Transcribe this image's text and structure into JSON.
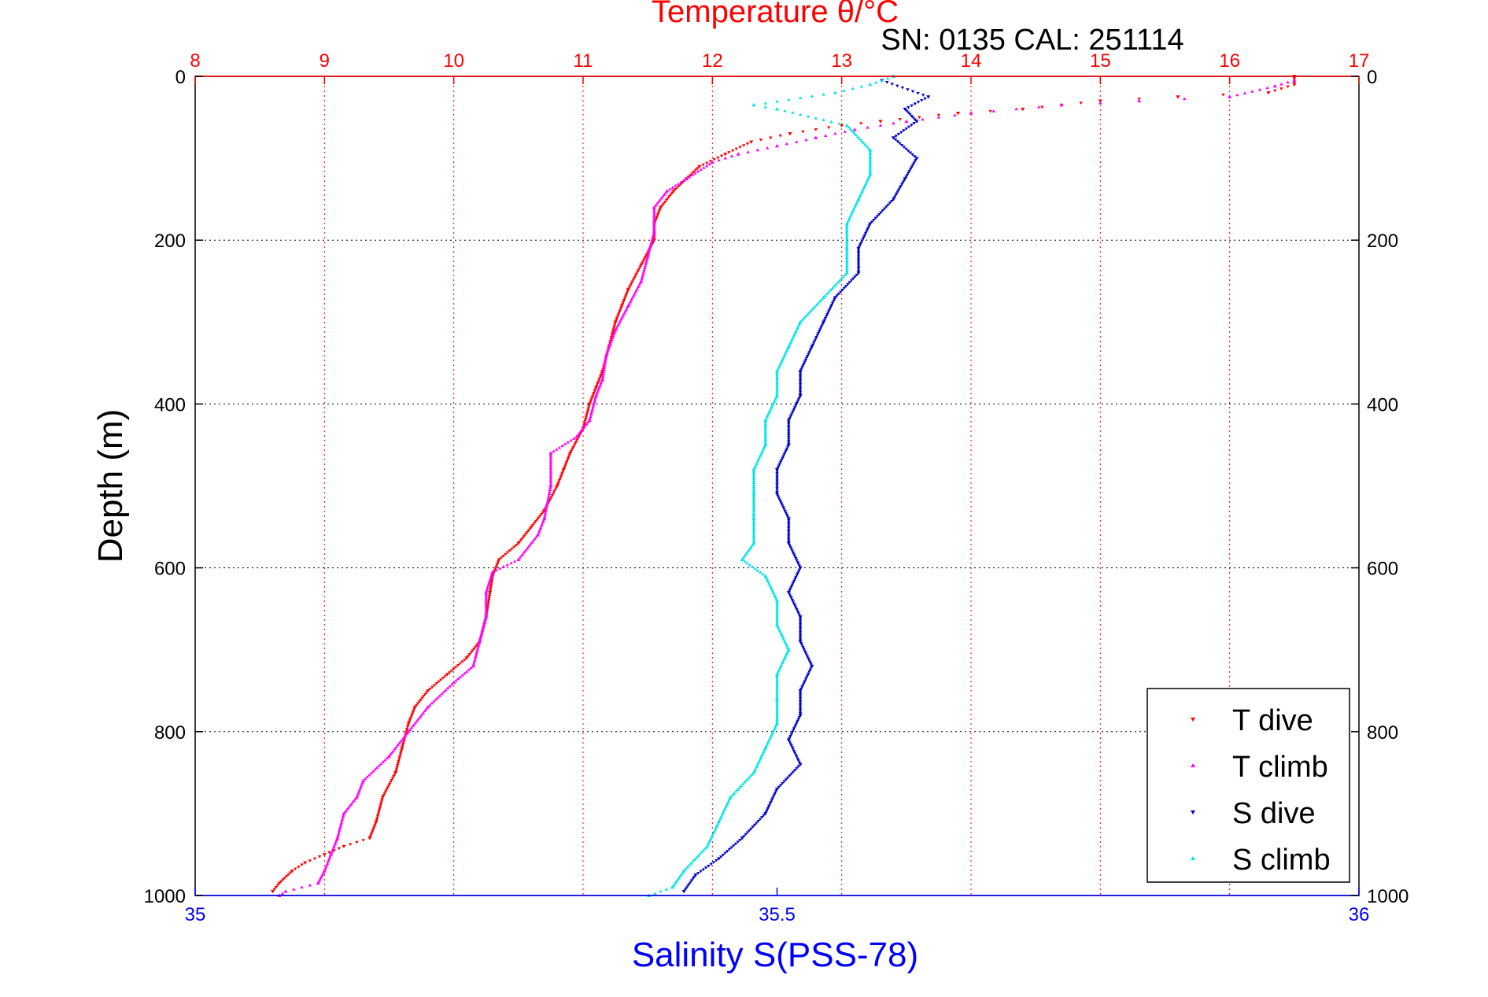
{
  "figure": {
    "title": "Temperature θ/°C",
    "serial_label": "SN: 0135  CAL: 251114",
    "ylabel": "Depth (m)",
    "xlabel_bottom": "Salinity S(PSS-78)"
  },
  "colors": {
    "temperature_axis": "#ff0000",
    "salinity_axis": "#0000ff",
    "t_dive": "#ff0000",
    "t_climb": "#ff00ff",
    "s_dive": "#0000cc",
    "s_climb": "#00e5e5",
    "grid_temperature": "#ff0000",
    "grid_depth": "#000000"
  },
  "chart_data": {
    "type": "scatter",
    "y_axis": {
      "label": "Depth (m)",
      "range": [
        0,
        1000
      ],
      "reversed": true,
      "ticks": [
        0,
        200,
        400,
        600,
        800,
        1000
      ],
      "tick_labels": [
        "0",
        "200",
        "400",
        "600",
        "800",
        "1000"
      ]
    },
    "x_axis_top": {
      "label": "Temperature θ/°C",
      "range": [
        8,
        17
      ],
      "ticks": [
        8,
        9,
        10,
        11,
        12,
        13,
        14,
        15,
        16,
        17
      ],
      "tick_labels": [
        "8",
        "9",
        "10",
        "11",
        "12",
        "13",
        "14",
        "15",
        "16",
        "17"
      ],
      "grid": true
    },
    "x_axis_bottom": {
      "label": "Salinity S(PSS-78)",
      "range": [
        35,
        36
      ],
      "ticks": [
        35,
        35.5,
        36
      ],
      "tick_labels": [
        "35",
        "35.5",
        "36"
      ]
    },
    "legend": {
      "placement": "bottom-right"
    },
    "series": [
      {
        "name": "T dive",
        "axis": "temperature",
        "marker": "triangle-down",
        "points": [
          [
            16.5,
            0
          ],
          [
            16.5,
            10
          ],
          [
            16.3,
            20
          ],
          [
            15.6,
            25
          ],
          [
            15.0,
            30
          ],
          [
            14.4,
            40
          ],
          [
            13.9,
            45
          ],
          [
            13.3,
            55
          ],
          [
            13.0,
            60
          ],
          [
            12.6,
            70
          ],
          [
            12.3,
            80
          ],
          [
            12.1,
            95
          ],
          [
            11.9,
            110
          ],
          [
            11.8,
            125
          ],
          [
            11.7,
            140
          ],
          [
            11.6,
            160
          ],
          [
            11.55,
            180
          ],
          [
            11.55,
            200
          ],
          [
            11.45,
            230
          ],
          [
            11.35,
            260
          ],
          [
            11.3,
            280
          ],
          [
            11.25,
            300
          ],
          [
            11.2,
            330
          ],
          [
            11.15,
            360
          ],
          [
            11.1,
            380
          ],
          [
            11.05,
            400
          ],
          [
            11.0,
            430
          ],
          [
            10.9,
            460
          ],
          [
            10.85,
            480
          ],
          [
            10.8,
            500
          ],
          [
            10.7,
            530
          ],
          [
            10.6,
            550
          ],
          [
            10.5,
            570
          ],
          [
            10.35,
            590
          ],
          [
            10.3,
            610
          ],
          [
            10.28,
            630
          ],
          [
            10.25,
            660
          ],
          [
            10.2,
            690
          ],
          [
            10.1,
            710
          ],
          [
            9.95,
            730
          ],
          [
            9.8,
            750
          ],
          [
            9.7,
            770
          ],
          [
            9.65,
            790
          ],
          [
            9.6,
            820
          ],
          [
            9.55,
            850
          ],
          [
            9.45,
            880
          ],
          [
            9.4,
            910
          ],
          [
            9.35,
            930
          ],
          [
            9.15,
            940
          ],
          [
            9.0,
            950
          ],
          [
            8.85,
            960
          ],
          [
            8.75,
            970
          ],
          [
            8.65,
            985
          ],
          [
            8.6,
            995
          ]
        ]
      },
      {
        "name": "T climb",
        "axis": "temperature",
        "marker": "triangle-up",
        "points": [
          [
            16.5,
            5
          ],
          [
            16.35,
            12
          ],
          [
            16.0,
            25
          ],
          [
            15.3,
            30
          ],
          [
            14.7,
            35
          ],
          [
            14.0,
            45
          ],
          [
            13.5,
            55
          ],
          [
            13.1,
            65
          ],
          [
            12.8,
            75
          ],
          [
            12.5,
            85
          ],
          [
            12.2,
            95
          ],
          [
            12.0,
            105
          ],
          [
            11.8,
            125
          ],
          [
            11.65,
            140
          ],
          [
            11.55,
            160
          ],
          [
            11.55,
            190
          ],
          [
            11.5,
            220
          ],
          [
            11.45,
            250
          ],
          [
            11.35,
            280
          ],
          [
            11.25,
            310
          ],
          [
            11.18,
            340
          ],
          [
            11.15,
            370
          ],
          [
            11.1,
            390
          ],
          [
            11.05,
            420
          ],
          [
            10.95,
            440
          ],
          [
            10.75,
            460
          ],
          [
            10.75,
            500
          ],
          [
            10.7,
            540
          ],
          [
            10.65,
            560
          ],
          [
            10.5,
            590
          ],
          [
            10.3,
            605
          ],
          [
            10.25,
            630
          ],
          [
            10.25,
            660
          ],
          [
            10.2,
            690
          ],
          [
            10.15,
            720
          ],
          [
            10.0,
            740
          ],
          [
            9.8,
            770
          ],
          [
            9.65,
            800
          ],
          [
            9.5,
            830
          ],
          [
            9.3,
            860
          ],
          [
            9.25,
            880
          ],
          [
            9.15,
            900
          ],
          [
            9.1,
            930
          ],
          [
            9.05,
            950
          ],
          [
            9.0,
            970
          ],
          [
            8.95,
            985
          ],
          [
            8.7,
            995
          ],
          [
            8.65,
            1000
          ]
        ]
      },
      {
        "name": "S dive",
        "axis": "salinity",
        "marker": "triangle-down",
        "points": [
          [
            35.59,
            5
          ],
          [
            35.63,
            25
          ],
          [
            35.61,
            40
          ],
          [
            35.62,
            55
          ],
          [
            35.6,
            75
          ],
          [
            35.62,
            100
          ],
          [
            35.61,
            125
          ],
          [
            35.6,
            150
          ],
          [
            35.58,
            180
          ],
          [
            35.57,
            210
          ],
          [
            35.57,
            240
          ],
          [
            35.55,
            270
          ],
          [
            35.54,
            300
          ],
          [
            35.53,
            330
          ],
          [
            35.52,
            360
          ],
          [
            35.52,
            390
          ],
          [
            35.51,
            420
          ],
          [
            35.51,
            450
          ],
          [
            35.5,
            480
          ],
          [
            35.5,
            510
          ],
          [
            35.51,
            540
          ],
          [
            35.51,
            570
          ],
          [
            35.52,
            600
          ],
          [
            35.51,
            630
          ],
          [
            35.52,
            660
          ],
          [
            35.52,
            690
          ],
          [
            35.53,
            720
          ],
          [
            35.52,
            750
          ],
          [
            35.52,
            780
          ],
          [
            35.51,
            810
          ],
          [
            35.52,
            840
          ],
          [
            35.5,
            870
          ],
          [
            35.49,
            900
          ],
          [
            35.47,
            930
          ],
          [
            35.45,
            955
          ],
          [
            35.43,
            975
          ],
          [
            35.42,
            995
          ]
        ]
      },
      {
        "name": "S climb",
        "axis": "salinity",
        "marker": "triangle-up",
        "points": [
          [
            35.6,
            0
          ],
          [
            35.58,
            10
          ],
          [
            35.55,
            20
          ],
          [
            35.48,
            35
          ],
          [
            35.5,
            40
          ],
          [
            35.56,
            60
          ],
          [
            35.58,
            90
          ],
          [
            35.58,
            120
          ],
          [
            35.57,
            150
          ],
          [
            35.56,
            180
          ],
          [
            35.56,
            210
          ],
          [
            35.56,
            240
          ],
          [
            35.54,
            270
          ],
          [
            35.52,
            300
          ],
          [
            35.51,
            330
          ],
          [
            35.5,
            360
          ],
          [
            35.5,
            390
          ],
          [
            35.49,
            420
          ],
          [
            35.49,
            450
          ],
          [
            35.48,
            480
          ],
          [
            35.48,
            510
          ],
          [
            35.48,
            540
          ],
          [
            35.48,
            570
          ],
          [
            35.47,
            590
          ],
          [
            35.49,
            610
          ],
          [
            35.5,
            640
          ],
          [
            35.5,
            670
          ],
          [
            35.51,
            700
          ],
          [
            35.5,
            730
          ],
          [
            35.5,
            760
          ],
          [
            35.5,
            790
          ],
          [
            35.49,
            820
          ],
          [
            35.48,
            850
          ],
          [
            35.46,
            880
          ],
          [
            35.45,
            910
          ],
          [
            35.44,
            940
          ],
          [
            35.42,
            970
          ],
          [
            35.41,
            990
          ],
          [
            35.39,
            1000
          ]
        ]
      }
    ]
  }
}
